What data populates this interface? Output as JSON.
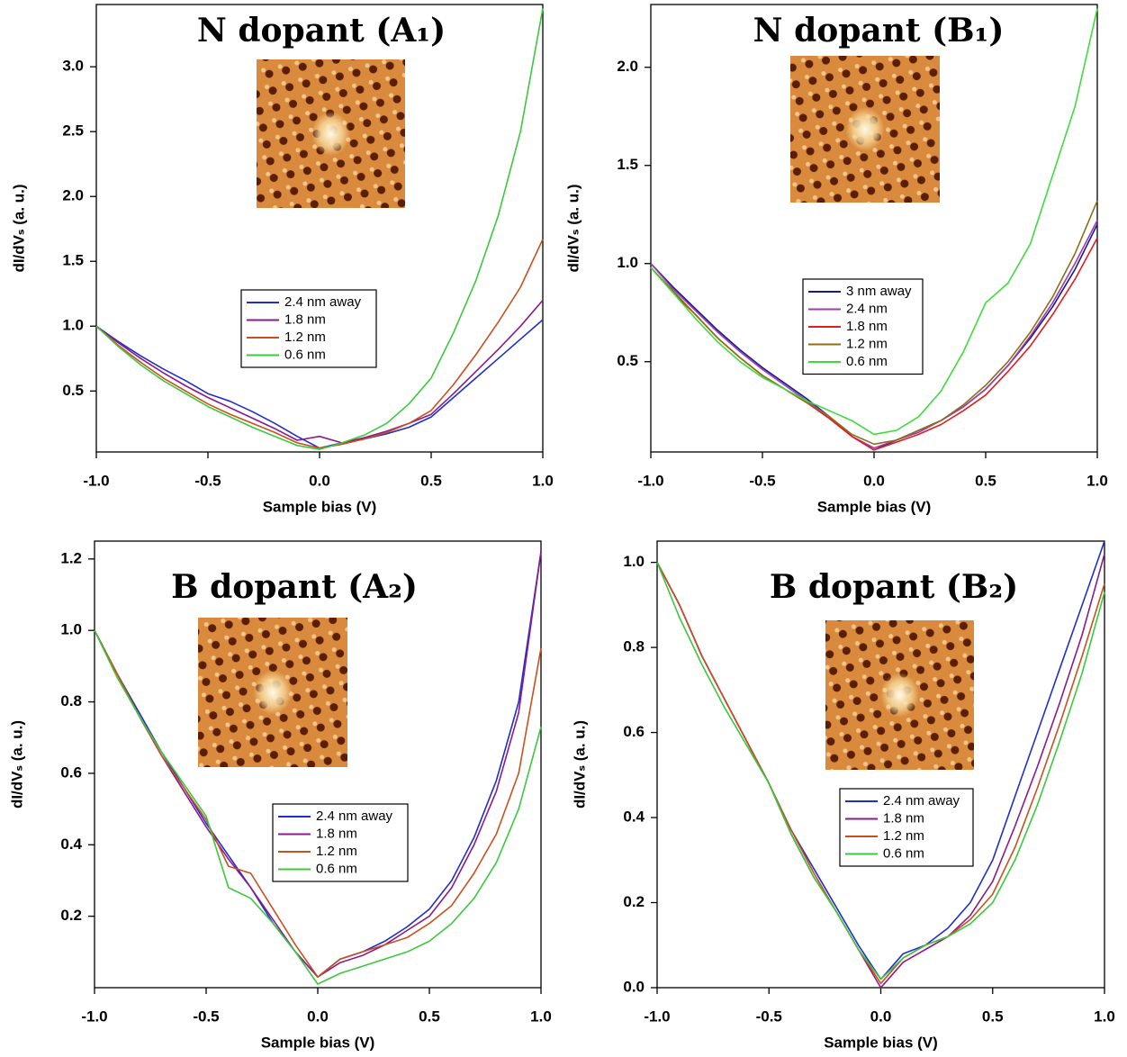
{
  "chart_data": [
    {
      "type": "line",
      "title": "N dopant (A₁)",
      "x_label": "Sample bias (V)",
      "y_label": "dI/dVₛ (a. u.)",
      "x": [
        -1.0,
        -0.9,
        -0.8,
        -0.7,
        -0.6,
        -0.5,
        -0.4,
        -0.3,
        -0.2,
        -0.1,
        0.0,
        0.1,
        0.2,
        0.3,
        0.4,
        0.5,
        0.6,
        0.7,
        0.8,
        0.9,
        1.0
      ],
      "xlim": [
        -1,
        1
      ],
      "xticks": [
        {
          "value": -1,
          "label": "-1.0"
        },
        -0.5,
        {
          "value": 0,
          "label": "0.0"
        },
        0.5,
        {
          "value": 1,
          "label": "1.0"
        }
      ],
      "ylim": [
        0.03,
        3.48
      ],
      "yticks": [
        0.5,
        {
          "value": 1,
          "label": "1.0"
        },
        1.5,
        {
          "value": 2,
          "label": "2.0"
        },
        2.5,
        {
          "value": 3,
          "label": "3.0"
        }
      ],
      "series": [
        {
          "name": "2.4 nm away",
          "color": "#1f2fcf",
          "values": [
            1.0,
            0.88,
            0.77,
            0.67,
            0.58,
            0.48,
            0.42,
            0.34,
            0.25,
            0.15,
            0.06,
            0.1,
            0.13,
            0.17,
            0.22,
            0.3,
            0.45,
            0.6,
            0.75,
            0.9,
            1.05
          ]
        },
        {
          "name": "1.8 nm",
          "color": "#8b1a8b",
          "values": [
            1.0,
            0.87,
            0.75,
            0.64,
            0.54,
            0.45,
            0.37,
            0.29,
            0.21,
            0.12,
            0.15,
            0.1,
            0.14,
            0.19,
            0.25,
            0.32,
            0.48,
            0.65,
            0.82,
            1.0,
            1.2
          ]
        },
        {
          "name": "1.2 nm",
          "color": "#c8501e",
          "values": [
            1.0,
            0.85,
            0.72,
            0.6,
            0.5,
            0.4,
            0.32,
            0.25,
            0.18,
            0.1,
            0.06,
            0.09,
            0.13,
            0.18,
            0.25,
            0.35,
            0.55,
            0.78,
            1.03,
            1.3,
            1.67
          ]
        },
        {
          "name": "0.6 nm",
          "color": "#3cc83c",
          "values": [
            1.0,
            0.84,
            0.7,
            0.58,
            0.48,
            0.38,
            0.3,
            0.22,
            0.15,
            0.08,
            0.05,
            0.1,
            0.16,
            0.25,
            0.4,
            0.6,
            0.95,
            1.35,
            1.85,
            2.5,
            3.45
          ]
        }
      ]
    },
    {
      "type": "line",
      "title": "N dopant (B₁)",
      "x_label": "Sample bias (V)",
      "y_label": "dI/dVₛ (a. u.)",
      "x": [
        -1.0,
        -0.9,
        -0.8,
        -0.7,
        -0.6,
        -0.5,
        -0.4,
        -0.3,
        -0.2,
        -0.1,
        0.0,
        0.1,
        0.2,
        0.3,
        0.4,
        0.5,
        0.6,
        0.7,
        0.8,
        0.9,
        1.0
      ],
      "xlim": [
        -1,
        1
      ],
      "xticks": [
        {
          "value": -1,
          "label": "-1.0"
        },
        -0.5,
        {
          "value": 0,
          "label": "0.0"
        },
        0.5,
        {
          "value": 1,
          "label": "1.0"
        }
      ],
      "ylim": [
        0.04,
        2.32
      ],
      "yticks": [
        0.5,
        {
          "value": 1,
          "label": "1.0"
        },
        1.5,
        {
          "value": 2,
          "label": "2.0"
        }
      ],
      "series": [
        {
          "name": "3 nm away",
          "color": "#1a1a8c",
          "values": [
            1.0,
            0.88,
            0.77,
            0.66,
            0.56,
            0.47,
            0.39,
            0.31,
            0.22,
            0.12,
            0.05,
            0.1,
            0.15,
            0.2,
            0.27,
            0.36,
            0.48,
            0.62,
            0.78,
            0.97,
            1.2
          ]
        },
        {
          "name": "2.4 nm",
          "color": "#a03cb4",
          "values": [
            1.0,
            0.87,
            0.76,
            0.65,
            0.55,
            0.46,
            0.38,
            0.3,
            0.22,
            0.12,
            0.06,
            0.1,
            0.14,
            0.2,
            0.27,
            0.36,
            0.48,
            0.63,
            0.8,
            1.0,
            1.22
          ]
        },
        {
          "name": "1.8 nm",
          "color": "#e01e1e",
          "values": [
            0.98,
            0.85,
            0.74,
            0.62,
            0.52,
            0.43,
            0.36,
            0.29,
            0.21,
            0.12,
            0.05,
            0.09,
            0.13,
            0.18,
            0.25,
            0.33,
            0.45,
            0.58,
            0.74,
            0.92,
            1.13
          ]
        },
        {
          "name": "1.2 nm",
          "color": "#8c6e14",
          "values": [
            0.98,
            0.86,
            0.74,
            0.62,
            0.52,
            0.43,
            0.36,
            0.29,
            0.22,
            0.13,
            0.08,
            0.1,
            0.15,
            0.2,
            0.28,
            0.38,
            0.5,
            0.65,
            0.83,
            1.05,
            1.32
          ]
        },
        {
          "name": "0.6 nm",
          "color": "#3cdc3c",
          "values": [
            0.98,
            0.85,
            0.72,
            0.6,
            0.5,
            0.42,
            0.36,
            0.3,
            0.25,
            0.2,
            0.13,
            0.15,
            0.22,
            0.35,
            0.55,
            0.8,
            0.9,
            1.1,
            1.45,
            1.8,
            2.3
          ]
        }
      ]
    },
    {
      "type": "line",
      "title": "B dopant (A₂)",
      "x_label": "Sample bias (V)",
      "y_label": "dI/dVₛ (a. u.)",
      "x": [
        -1.0,
        -0.9,
        -0.8,
        -0.7,
        -0.6,
        -0.5,
        -0.4,
        -0.3,
        -0.2,
        -0.1,
        0.0,
        0.1,
        0.2,
        0.3,
        0.4,
        0.5,
        0.6,
        0.7,
        0.8,
        0.9,
        1.0
      ],
      "xlim": [
        -1,
        1
      ],
      "xticks": [
        {
          "value": -1,
          "label": "-1.0"
        },
        -0.5,
        {
          "value": 0,
          "label": "0.0"
        },
        0.5,
        {
          "value": 1,
          "label": "1.0"
        }
      ],
      "ylim": [
        0,
        1.25
      ],
      "yticks": [
        0.2,
        0.4,
        0.6,
        0.8,
        {
          "value": 1,
          "label": "1.0"
        },
        1.2
      ],
      "series": [
        {
          "name": "2.4 nm away",
          "color": "#1f2fcf",
          "values": [
            1.0,
            0.88,
            0.77,
            0.66,
            0.56,
            0.46,
            0.37,
            0.28,
            0.18,
            0.1,
            0.03,
            0.08,
            0.1,
            0.13,
            0.17,
            0.22,
            0.3,
            0.42,
            0.58,
            0.8,
            1.22
          ]
        },
        {
          "name": "1.8 nm",
          "color": "#8b1a8b",
          "values": [
            1.0,
            0.88,
            0.76,
            0.65,
            0.55,
            0.45,
            0.36,
            0.28,
            0.19,
            0.1,
            0.03,
            0.07,
            0.09,
            0.12,
            0.16,
            0.2,
            0.28,
            0.4,
            0.55,
            0.77,
            1.22
          ]
        },
        {
          "name": "1.2 nm",
          "color": "#c8501e",
          "values": [
            1.0,
            0.88,
            0.76,
            0.65,
            0.56,
            0.47,
            0.34,
            0.32,
            0.22,
            0.12,
            0.03,
            0.08,
            0.1,
            0.12,
            0.14,
            0.18,
            0.23,
            0.32,
            0.43,
            0.6,
            0.95
          ]
        },
        {
          "name": "0.6 nm",
          "color": "#3cc83c",
          "values": [
            1.0,
            0.87,
            0.76,
            0.66,
            0.57,
            0.48,
            0.28,
            0.25,
            0.18,
            0.1,
            0.01,
            0.04,
            0.06,
            0.08,
            0.1,
            0.13,
            0.18,
            0.25,
            0.35,
            0.5,
            0.73
          ]
        }
      ]
    },
    {
      "type": "line",
      "title": "B dopant (B₂)",
      "x_label": "Sample bias (V)",
      "y_label": "dI/dVₛ (a. u.)",
      "x": [
        -1.0,
        -0.9,
        -0.8,
        -0.7,
        -0.6,
        -0.5,
        -0.4,
        -0.3,
        -0.2,
        -0.1,
        0.0,
        0.1,
        0.2,
        0.3,
        0.4,
        0.5,
        0.6,
        0.7,
        0.8,
        0.9,
        1.0
      ],
      "xlim": [
        -1,
        1
      ],
      "xticks": [
        {
          "value": -1,
          "label": "-1.0"
        },
        -0.5,
        {
          "value": 0,
          "label": "0.0"
        },
        0.5,
        {
          "value": 1,
          "label": "1.0"
        }
      ],
      "ylim": [
        0,
        1.05
      ],
      "yticks": [
        {
          "value": 0,
          "label": "0.0"
        },
        0.2,
        0.4,
        0.6,
        0.8,
        {
          "value": 1,
          "label": "1.0"
        }
      ],
      "series": [
        {
          "name": "2.4 nm away",
          "color": "#1f2fcf",
          "values": [
            1.0,
            0.9,
            0.78,
            0.68,
            0.58,
            0.48,
            0.37,
            0.28,
            0.19,
            0.1,
            0.02,
            0.08,
            0.1,
            0.14,
            0.2,
            0.3,
            0.45,
            0.6,
            0.75,
            0.9,
            1.05
          ]
        },
        {
          "name": "1.8 nm",
          "color": "#8b1a8b",
          "values": [
            1.0,
            0.9,
            0.78,
            0.68,
            0.58,
            0.48,
            0.36,
            0.26,
            0.18,
            0.09,
            0.0,
            0.06,
            0.09,
            0.12,
            0.17,
            0.25,
            0.38,
            0.52,
            0.67,
            0.83,
            1.02
          ]
        },
        {
          "name": "1.2 nm",
          "color": "#c8501e",
          "values": [
            1.0,
            0.9,
            0.78,
            0.68,
            0.58,
            0.48,
            0.37,
            0.27,
            0.18,
            0.09,
            0.01,
            0.07,
            0.1,
            0.12,
            0.16,
            0.22,
            0.33,
            0.47,
            0.62,
            0.78,
            0.95
          ]
        },
        {
          "name": "0.6 nm",
          "color": "#3cc83c",
          "values": [
            1.0,
            0.87,
            0.76,
            0.66,
            0.57,
            0.48,
            0.36,
            0.26,
            0.18,
            0.09,
            0.02,
            0.07,
            0.1,
            0.12,
            0.15,
            0.2,
            0.3,
            0.43,
            0.58,
            0.74,
            0.93
          ]
        }
      ]
    }
  ]
}
